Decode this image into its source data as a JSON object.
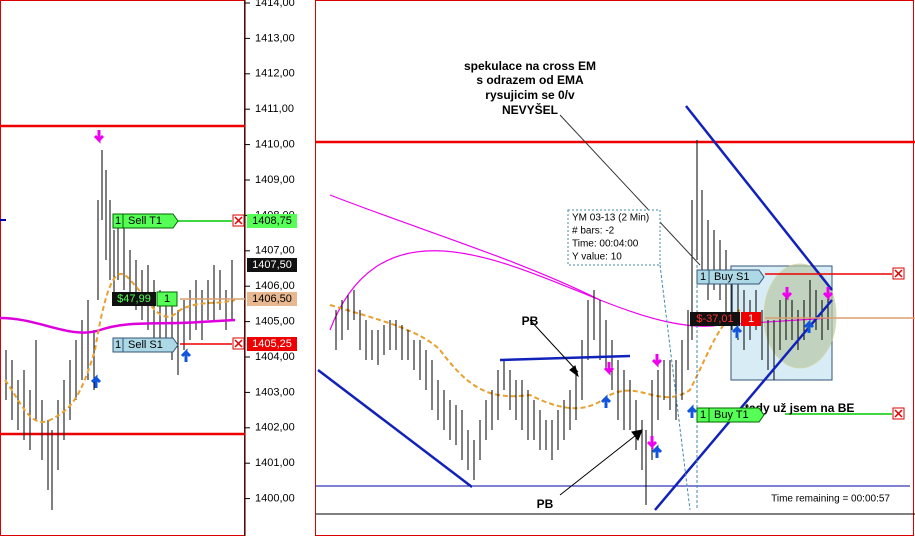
{
  "price_axis": {
    "labels": [
      "1414,00",
      "1413,00",
      "1412,00",
      "1411,00",
      "1410,00",
      "1409,00",
      "1408,00",
      "1407,00",
      "1406,00",
      "1405,00",
      "1404,00",
      "1403,00",
      "1402,00",
      "1401,00",
      "1400,00"
    ],
    "markers": {
      "sell_target": "1408,75",
      "last": "1407,50",
      "entry": "1406,50",
      "stop": "1405,25"
    }
  },
  "left_panel": {
    "sell_target": {
      "qty": "1",
      "label": "Sell T1"
    },
    "pnl": {
      "amount": "$47,99",
      "qty": "1"
    },
    "sell_stop": {
      "qty": "1",
      "label": "Sell S1"
    }
  },
  "right_panel": {
    "annotation": [
      "spekulace na cross EM",
      "s odrazem od EMA",
      "rysujicim se 0/v",
      "NEVYŠEL"
    ],
    "pb_labels": [
      "PB",
      "PB"
    ],
    "info_box": [
      "YM 03-13 (2 Min)",
      "# bars:   -2",
      "Time:     00:04:00",
      "Y value: 10"
    ],
    "buy_stop": {
      "qty": "1",
      "label": "Buy S1"
    },
    "pnl": {
      "amount": "$-37,01",
      "qty": "1"
    },
    "buy_target": {
      "qty": "1",
      "label": "Buy T1"
    },
    "be_note": "tady už jsem na BE",
    "time_remaining": "Time remaining = 00:00:57"
  }
}
